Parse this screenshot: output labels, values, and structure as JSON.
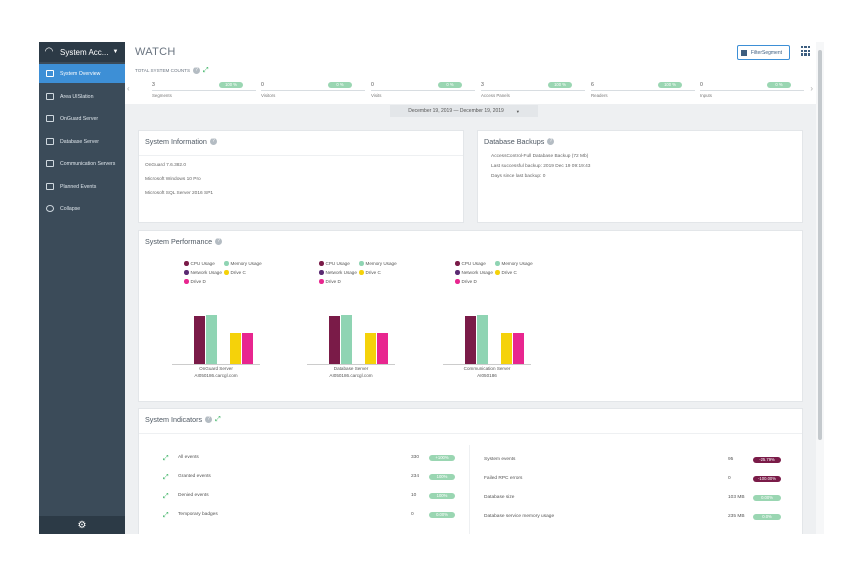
{
  "sidebar": {
    "app_title": "System Acc...",
    "items": [
      {
        "label": "System Overview",
        "icon": "gauge-icon",
        "active": true
      },
      {
        "label": "Area UISlation",
        "icon": "map-icon",
        "active": false
      },
      {
        "label": "OnGuard Server",
        "icon": "server-icon",
        "active": false
      },
      {
        "label": "Database Server",
        "icon": "database-icon",
        "active": false
      },
      {
        "label": "Communication Servers",
        "icon": "chat-icon",
        "active": false
      },
      {
        "label": "Planned Events",
        "icon": "calendar-icon",
        "active": false
      },
      {
        "label": "Collapse",
        "icon": "collapse-icon",
        "active": false
      }
    ],
    "footer_icon": "gear-icon"
  },
  "header": {
    "title": "WATCH",
    "filter_button": "FilterSegment"
  },
  "counts": {
    "label": "TOTAL SYSTEM COUNTS",
    "items": [
      {
        "value": "3",
        "pct": "100 %",
        "label": "Segments"
      },
      {
        "value": "0",
        "pct": "0 %",
        "label": "Visitors"
      },
      {
        "value": "0",
        "pct": "0 %",
        "label": "Visits"
      },
      {
        "value": "3",
        "pct": "100 %",
        "label": "Access Panels"
      },
      {
        "value": "6",
        "pct": "100 %",
        "label": "Readers"
      },
      {
        "value": "0",
        "pct": "0 %",
        "label": "Inputs"
      }
    ]
  },
  "date_range": "December 19, 2019  —  December 19, 2019",
  "system_info": {
    "title": "System Information",
    "lines": [
      "OnGuard 7.6.382.0",
      "Microsoft Windows 10 Pro",
      "Microsoft SQL Server 2016 SP1"
    ]
  },
  "db_backups": {
    "title": "Database Backups",
    "lines": [
      "AccessControl-Full Database Backup (72 Mb)",
      "Last successful backup: 2019 Dec 19 09:19:43",
      "Days since last backup: 0"
    ]
  },
  "perf": {
    "title": "System Performance",
    "legend": [
      "CPU Usage",
      "Memory Usage",
      "Network Usage",
      "Drive C",
      "Drive D"
    ],
    "colors": [
      "#7a1b48",
      "#8fd4b3",
      "#5a2a72",
      "#f5d20a",
      "#e8268f"
    ]
  },
  "chart_data": [
    {
      "type": "bar",
      "categories": [
        "CPU Usage",
        "Memory Usage",
        "Network Usage",
        "Drive C",
        "Drive D"
      ],
      "values": [
        68,
        70,
        0,
        45,
        45
      ],
      "xlabel": "OnGuard Server",
      "subtitle": "AI050186.carcgl.com"
    },
    {
      "type": "bar",
      "categories": [
        "CPU Usage",
        "Memory Usage",
        "Network Usage",
        "Drive C",
        "Drive D"
      ],
      "values": [
        68,
        70,
        0,
        45,
        45
      ],
      "xlabel": "Database Server",
      "subtitle": "AI050186.carcgl.com"
    },
    {
      "type": "bar",
      "categories": [
        "CPU Usage",
        "Memory Usage",
        "Network Usage",
        "Drive C",
        "Drive D"
      ],
      "values": [
        68,
        70,
        0,
        45,
        45
      ],
      "xlabel": "Communication Server",
      "subtitle": "AI050186"
    }
  ],
  "indicators": {
    "title": "System Indicators",
    "left": [
      {
        "label": "All events",
        "value": "330",
        "pct": "+100%"
      },
      {
        "label": "Granted events",
        "value": "234",
        "pct": "100%"
      },
      {
        "label": "Denied events",
        "value": "10",
        "pct": "100%"
      },
      {
        "label": "Temporary badges",
        "value": "0",
        "pct": "0.00%"
      }
    ],
    "right": [
      {
        "label": "System events",
        "value": "95",
        "pct": "-25.79%",
        "tone": "r"
      },
      {
        "label": "Failed RPC errors",
        "value": "0",
        "pct": "-100.00%",
        "tone": "r"
      },
      {
        "label": "Database size",
        "value": "103 MB",
        "pct": "0.00%",
        "tone": "g"
      },
      {
        "label": "Database service memory usage",
        "value": "235 MB",
        "pct": "0.0%",
        "tone": "g"
      }
    ]
  }
}
